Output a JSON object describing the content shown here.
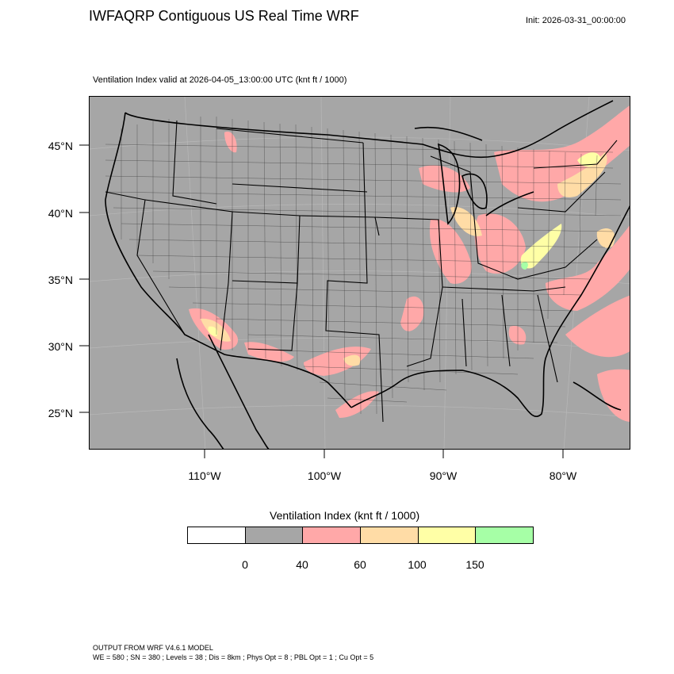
{
  "header": {
    "title": "IWFAQRP Contiguous US Real Time WRF",
    "init": "Init: 2026-03-31_00:00:00",
    "subtitle": "Ventilation Index valid at 2026-04-05_13:00:00 UTC   (knt ft / 1000)"
  },
  "map": {
    "projection": "lambert-conformal",
    "region": "Contiguous United States",
    "background_color": "#a6a6a6",
    "lat_labels": [
      "45°N",
      "40°N",
      "35°N",
      "30°N",
      "25°N"
    ],
    "lon_labels": [
      "110°W",
      "100°W",
      "90°W",
      "80°W"
    ],
    "grid": true,
    "boundaries": [
      "country",
      "state",
      "county"
    ]
  },
  "legend": {
    "title": "Ventilation Index  (knt ft / 1000)",
    "bins": [
      {
        "min": null,
        "max": 0,
        "color": "#ffffff"
      },
      {
        "min": 0,
        "max": 40,
        "color": "#a6a6a6"
      },
      {
        "min": 40,
        "max": 60,
        "color": "#ffa8a8"
      },
      {
        "min": 60,
        "max": 100,
        "color": "#ffdca6"
      },
      {
        "min": 100,
        "max": 150,
        "color": "#ffffa6"
      },
      {
        "min": 150,
        "max": null,
        "color": "#a6ffa6"
      }
    ],
    "tick_labels": [
      "0",
      "40",
      "60",
      "100",
      "150"
    ]
  },
  "footer": {
    "line1": "OUTPUT FROM WRF V4.6.1 MODEL",
    "line2": "WE = 580 ; SN = 380 ; Levels = 38 ; Dis = 8km ; Phys Opt = 8 ; PBL Opt = 1 ; Cu Opt = 5"
  }
}
